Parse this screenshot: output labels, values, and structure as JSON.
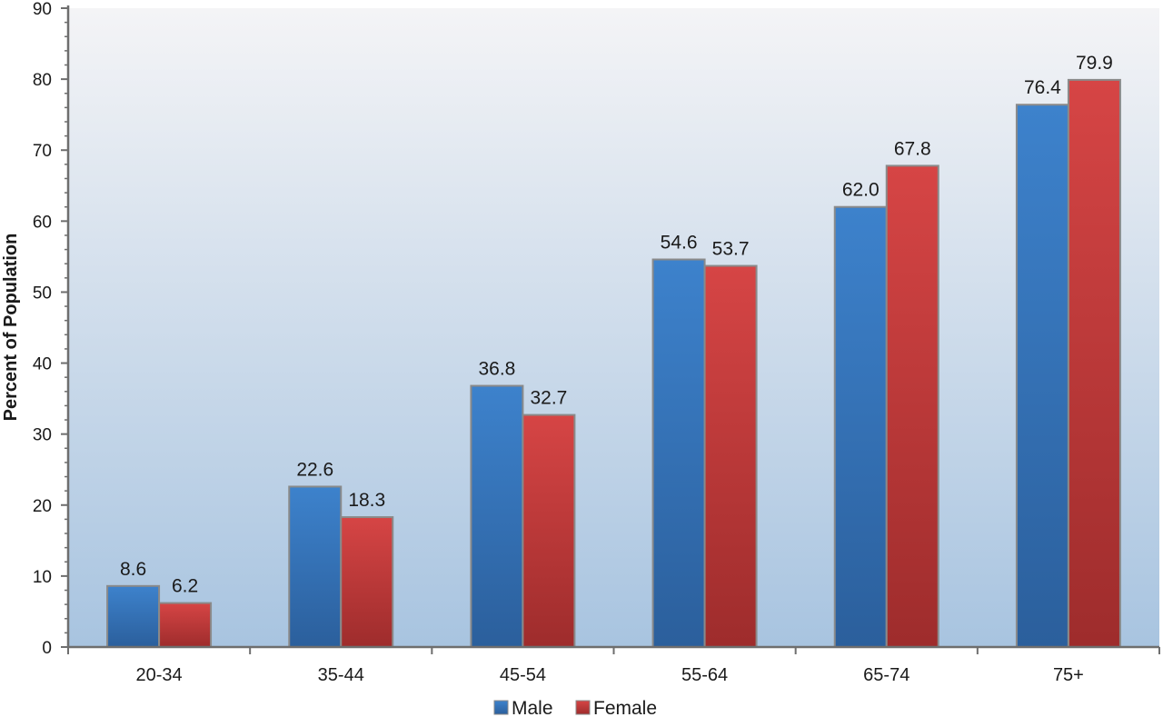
{
  "chart_data": {
    "type": "bar",
    "title": "",
    "xlabel": "",
    "ylabel": "Percent of Population",
    "categories": [
      "20-34",
      "35-44",
      "45-54",
      "55-64",
      "65-74",
      "75+"
    ],
    "series": [
      {
        "name": "Male",
        "values": [
          8.6,
          22.6,
          36.8,
          54.6,
          62.0,
          76.4
        ],
        "labels": [
          "8.6",
          "22.6",
          "36.8",
          "54.6",
          "62.0",
          "76.4"
        ]
      },
      {
        "name": "Female",
        "values": [
          6.2,
          18.3,
          32.7,
          53.7,
          67.8,
          79.9
        ],
        "labels": [
          "6.2",
          "18.3",
          "32.7",
          "53.7",
          "67.8",
          "79.9"
        ]
      }
    ],
    "ylim": [
      0,
      90
    ],
    "yticks": [
      0,
      10,
      20,
      30,
      40,
      50,
      60,
      70,
      80,
      90
    ],
    "grid": false,
    "legend_position": "bottom-center",
    "colors": {
      "Male": "#3a78bd",
      "Female": "#cf4040",
      "plot_background_top": "#f4f4f6",
      "plot_background_bottom": "#a8c4e0",
      "axis": "#6e6e6e",
      "bar_border": "#8a8a8a"
    }
  }
}
